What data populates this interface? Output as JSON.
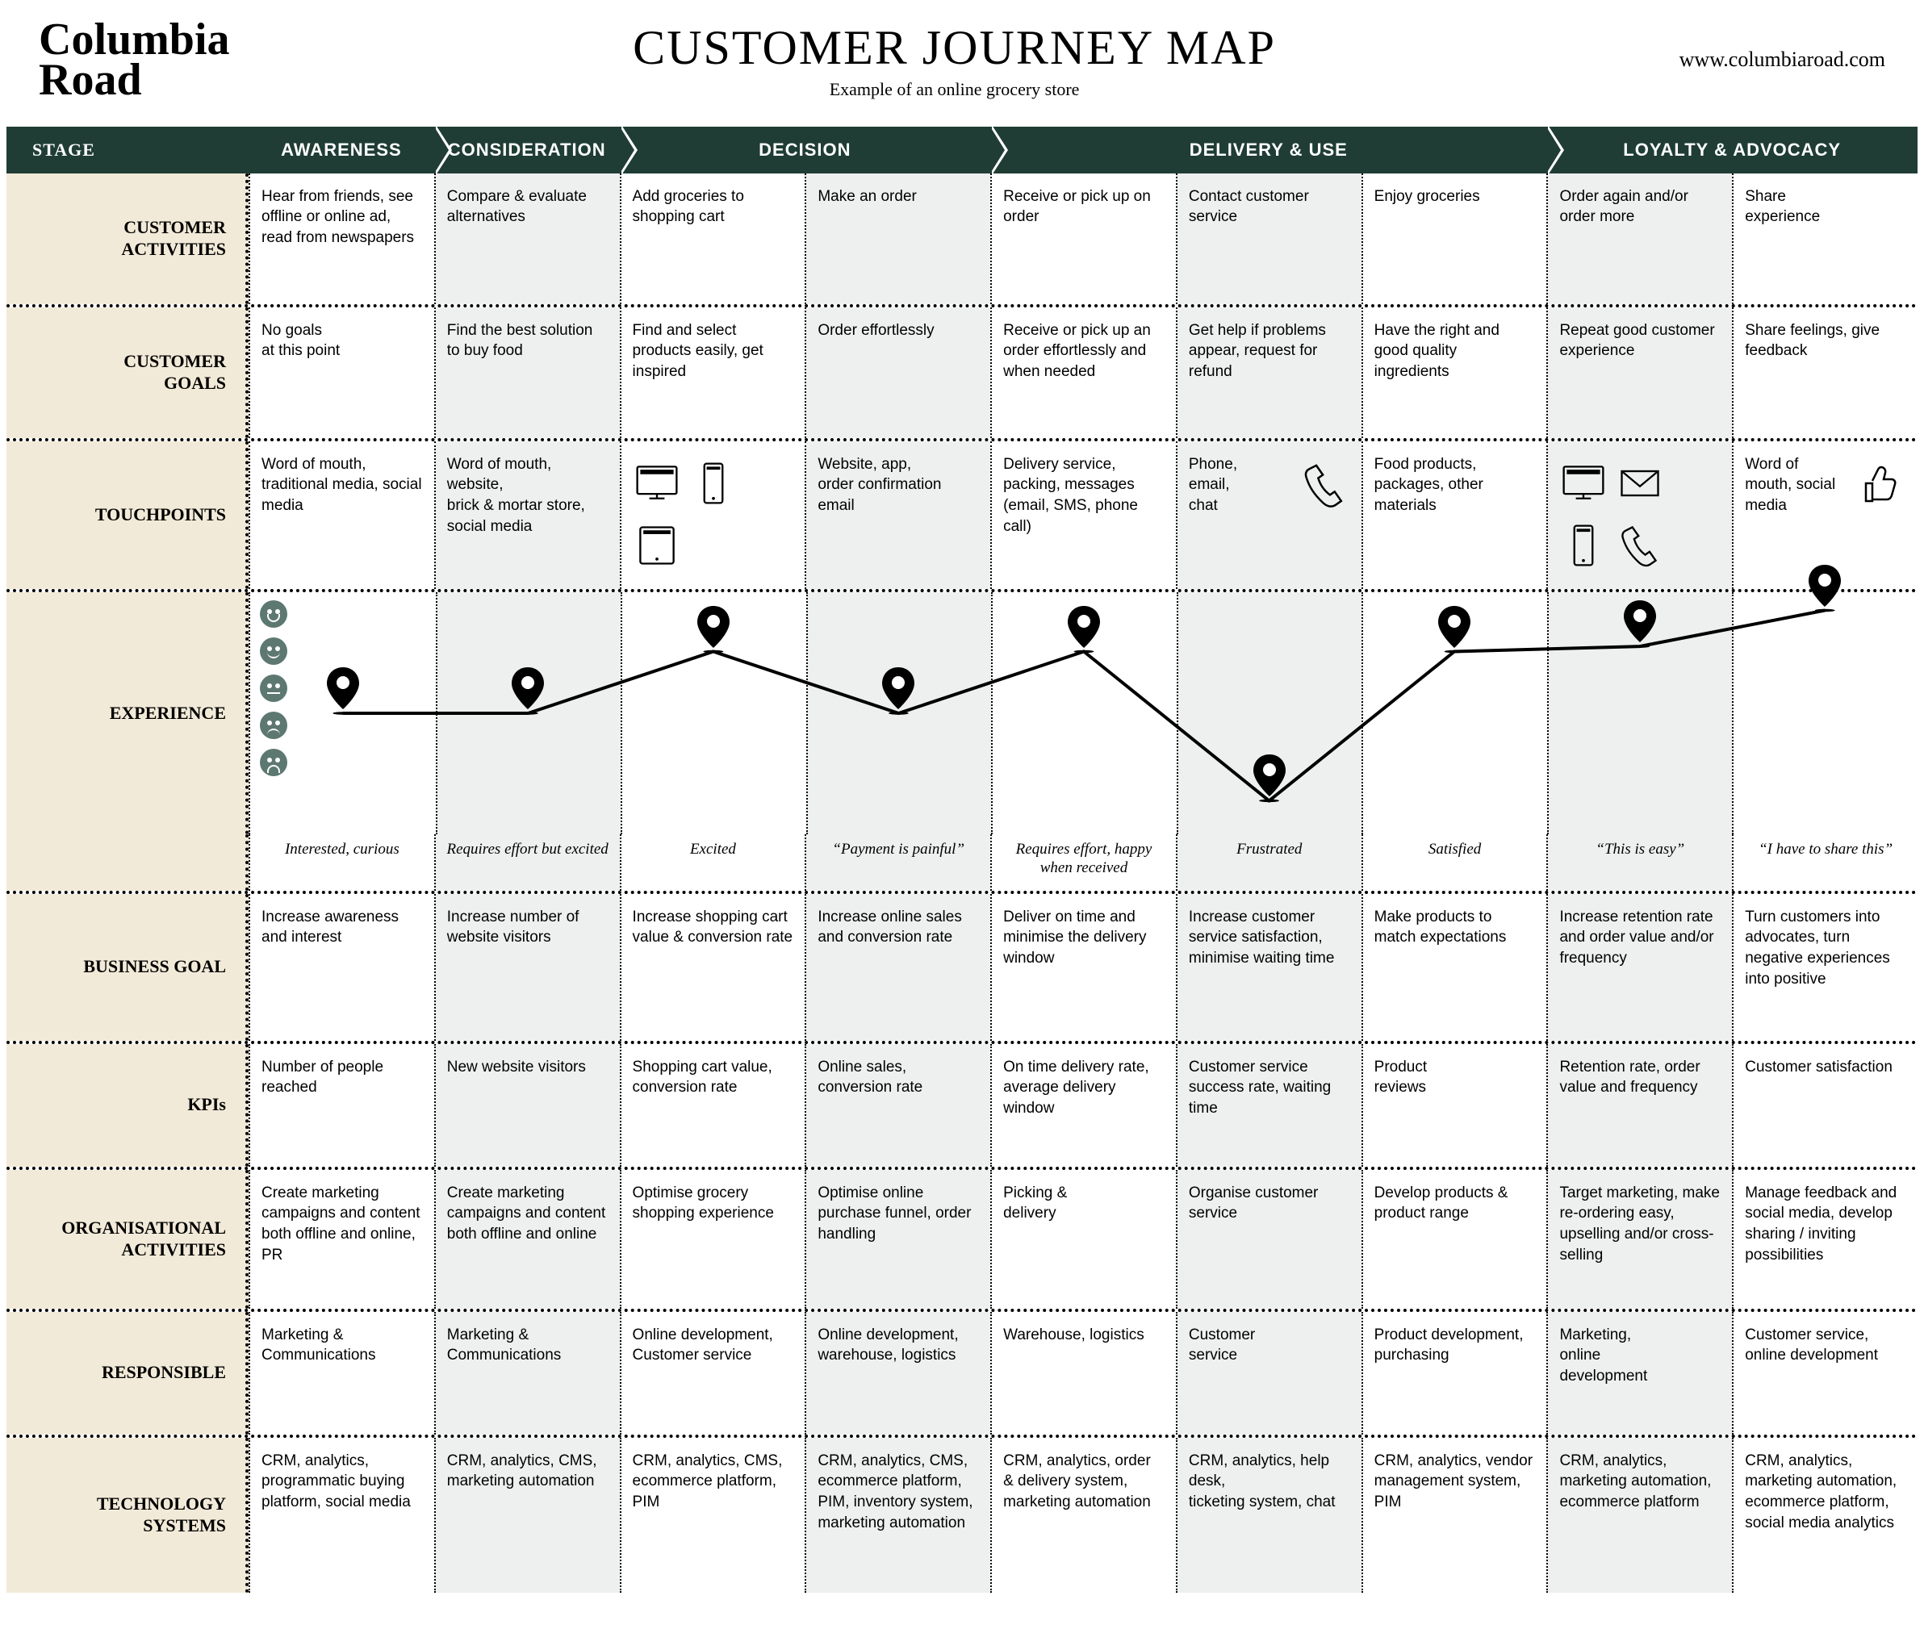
{
  "brand": "Columbia\nRoad",
  "title": "CUSTOMER JOURNEY MAP",
  "subtitle": "Example of an online grocery store",
  "url": "www.columbiaroad.com",
  "colors": {
    "dark": "#1f3d34",
    "beige": "#f2ead8",
    "lightgrey": "#eef0ef",
    "white": "#ffffff",
    "face": "#5d7870",
    "line": "#000000"
  },
  "stage_header_label": "STAGE",
  "stages": [
    {
      "label": "AWARENESS",
      "span": 1,
      "arrow": true
    },
    {
      "label": "CONSIDERATION",
      "span": 1,
      "arrow": true
    },
    {
      "label": "DECISION",
      "span": 2,
      "arrow": true
    },
    {
      "label": "DELIVERY & USE",
      "span": 3,
      "arrow": true
    },
    {
      "label": "LOYALTY  & ADVOCACY",
      "span": 2,
      "arrow": false
    }
  ],
  "column_shade": [
    "a",
    "b",
    "a",
    "b",
    "a",
    "b",
    "a",
    "b",
    "a"
  ],
  "row_labels": {
    "activities": "CUSTOMER\nACTIVITIES",
    "goals": "CUSTOMER\nGOALS",
    "touchpoints": "TOUCHPOINTS",
    "experience": "EXPERIENCE",
    "business": "BUSINESS GOAL",
    "kpis": "KPIs",
    "org": "ORGANISATIONAL\nACTIVITIES",
    "responsible": "RESPONSIBLE",
    "tech": "TECHNOLOGY\nSYSTEMS"
  },
  "rows": {
    "activities": [
      "Hear from friends, see offline or online ad, read from newspapers",
      "Compare & evaluate alternatives",
      "Add groceries to shopping cart",
      "Make an order",
      "Receive or pick up on order",
      "Contact customer service",
      "Enjoy groceries",
      "Order again and/or order more",
      "Share\nexperience"
    ],
    "goals": [
      "No goals\nat this point",
      "Find the best solution to buy food",
      "Find and select products easily, get inspired",
      "Order effortlessly",
      "Receive or pick up an order effortlessly and when needed",
      "Get help if problems appear, request for refund",
      "Have the right and good quality ingredients",
      "Repeat good customer experience",
      "Share feelings, give feedback"
    ],
    "touchpoints": [
      {
        "text": "Word of mouth, traditional media, social media"
      },
      {
        "text": "Word of mouth, website,\nbrick & mortar store, social media"
      },
      {
        "icons": [
          "desktop",
          "mobile",
          "tablet"
        ]
      },
      {
        "text": "Website, app,\norder confirmation email"
      },
      {
        "text": "Delivery service, packing, messages (email, SMS, phone call)"
      },
      {
        "text": "Phone,\nemail,\nchat",
        "icons_right": [
          "phone"
        ]
      },
      {
        "text": "Food products, packages, other materials"
      },
      {
        "icons": [
          "desktop",
          "mail",
          "mobile",
          "phone"
        ]
      },
      {
        "text": "Word of mouth, social\nmedia",
        "icons_right": [
          "thumbs"
        ]
      }
    ],
    "business": [
      "Increase awareness and interest",
      "Increase number of website visitors",
      "Increase shopping cart value & conversion rate",
      "Increase online sales and conversion rate",
      "Deliver on time and minimise the delivery window",
      "Increase customer service satisfaction, minimise waiting time",
      "Make products to match expectations",
      "Increase retention rate and order value and/or frequency",
      "Turn customers into advocates, turn negative experiences into positive"
    ],
    "kpis": [
      "Number of people reached",
      "New website visitors",
      "Shopping cart value,\nconversion rate",
      "Online sales, conversion rate",
      "On time delivery rate, average delivery window",
      "Customer service success rate, waiting time",
      "Product\nreviews",
      "Retention rate, order value and frequency",
      "Customer satisfaction"
    ],
    "org": [
      "Create marketing campaigns and content both offline and online, PR",
      "Create marketing campaigns and content both offline and online",
      "Optimise grocery shopping experience",
      "Optimise online purchase funnel, order handling",
      "Picking &\ndelivery",
      "Organise customer service",
      "Develop products & product range",
      "Target marketing, make re-ordering easy, upselling and/or cross-selling",
      "Manage feedback and social media, develop sharing / inviting possibilities"
    ],
    "responsible": [
      "Marketing & Communications",
      "Marketing & Communications",
      "Online development, Customer service",
      "Online development, warehouse, logistics",
      "Warehouse, logistics",
      "Customer\nservice",
      "Product development, purchasing",
      "Marketing,\nonline\ndevelopment",
      "Customer service, online development"
    ],
    "tech": [
      "CRM, analytics, programmatic buying platform, social media",
      "CRM, analytics, CMS, marketing automation",
      "CRM, analytics, CMS, ecommerce platform, PIM",
      "CRM, analytics, CMS, ecommerce platform, PIM, inventory system, marketing automation",
      "CRM, analytics, order & delivery system, marketing automation",
      "CRM, analytics, help desk,\nticketing system, chat",
      "CRM, analytics, vendor management system, PIM",
      "CRM, analytics, marketing automation, ecommerce platform",
      "CRM, analytics, marketing automation, ecommerce platform, social media analytics"
    ]
  },
  "experience": {
    "scale_levels": 5,
    "values": [
      3,
      3,
      4.2,
      3,
      4.2,
      1.3,
      4.2,
      4.3,
      5
    ],
    "marker_color": "#000000",
    "line_width": 4,
    "captions": [
      "Interested, curious",
      "Requires effort but excited",
      "Excited",
      "“Payment is painful”",
      "Requires effort, happy\nwhen received",
      "Frustrated",
      "Satisfied",
      "“This is easy”",
      "“I have to share this”"
    ]
  }
}
